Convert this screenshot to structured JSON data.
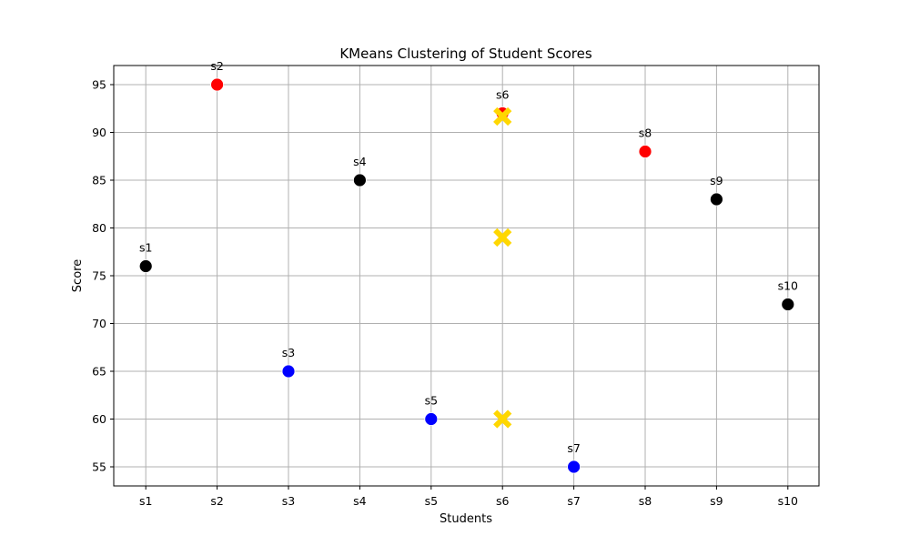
{
  "chart_data": {
    "type": "scatter",
    "title": "KMeans Clustering of Student Scores",
    "xlabel": "Students",
    "ylabel": "Score",
    "categories": [
      "s1",
      "s2",
      "s3",
      "s4",
      "s5",
      "s6",
      "s7",
      "s8",
      "s9",
      "s10"
    ],
    "ylim": [
      53,
      97
    ],
    "yticks": [
      55,
      60,
      65,
      70,
      75,
      80,
      85,
      90,
      95
    ],
    "grid": true,
    "points": [
      {
        "label": "s1",
        "x": "s1",
        "y": 76,
        "cluster": 0,
        "color": "#000000"
      },
      {
        "label": "s2",
        "x": "s2",
        "y": 95,
        "cluster": 1,
        "color": "#ff0000"
      },
      {
        "label": "s3",
        "x": "s3",
        "y": 65,
        "cluster": 2,
        "color": "#0000ff"
      },
      {
        "label": "s4",
        "x": "s4",
        "y": 85,
        "cluster": 0,
        "color": "#000000"
      },
      {
        "label": "s5",
        "x": "s5",
        "y": 60,
        "cluster": 2,
        "color": "#0000ff"
      },
      {
        "label": "s6",
        "x": "s6",
        "y": 92,
        "cluster": 1,
        "color": "#ff0000"
      },
      {
        "label": "s7",
        "x": "s7",
        "y": 55,
        "cluster": 2,
        "color": "#0000ff"
      },
      {
        "label": "s8",
        "x": "s8",
        "y": 88,
        "cluster": 1,
        "color": "#ff0000"
      },
      {
        "label": "s9",
        "x": "s9",
        "y": 83,
        "cluster": 0,
        "color": "#000000"
      },
      {
        "label": "s10",
        "x": "s10",
        "y": 72,
        "cluster": 0,
        "color": "#000000"
      }
    ],
    "centroids": [
      {
        "x": "s6",
        "y": 91.67,
        "color": "#ffd700"
      },
      {
        "x": "s6",
        "y": 79.0,
        "color": "#ffd700"
      },
      {
        "x": "s6",
        "y": 60.0,
        "color": "#ffd700"
      }
    ]
  }
}
